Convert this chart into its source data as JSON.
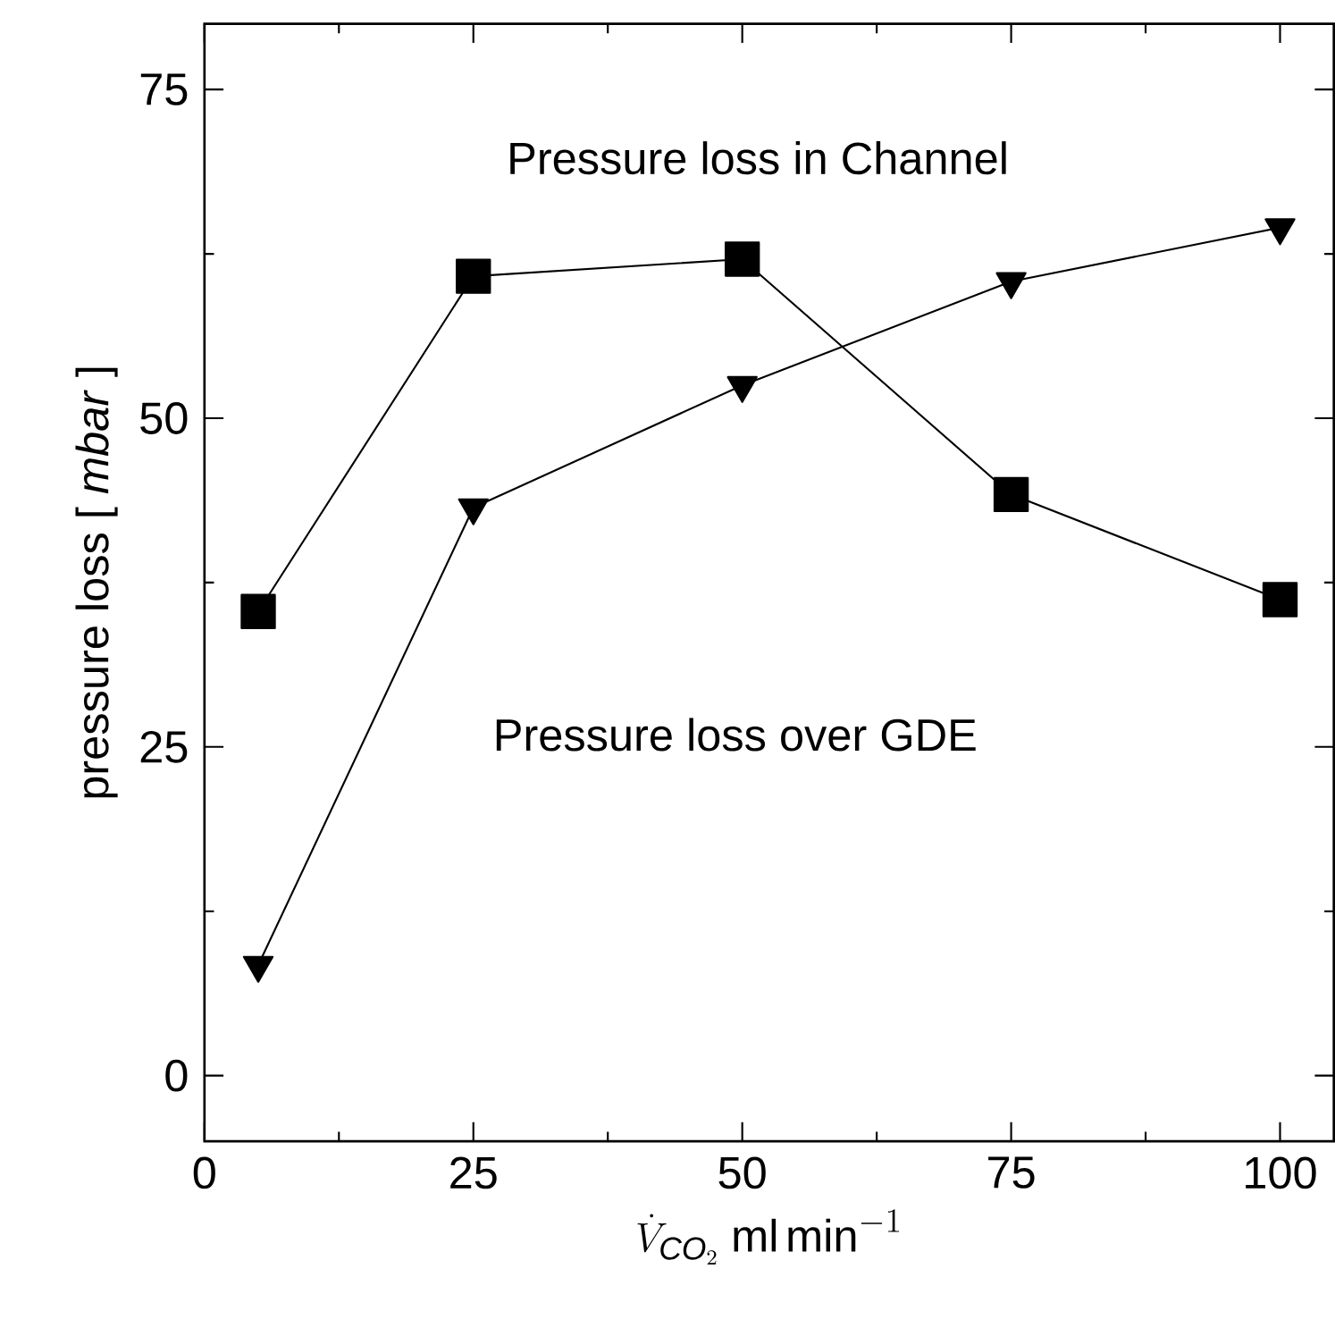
{
  "chart_data": {
    "type": "line",
    "xlabel": "\\dot{V}_{\\mathit{CO}_2}\\;\\mathrm{ml\\,min}^{-1}",
    "ylabel": "pressure loss [ *mbar* ]",
    "x": [
      5,
      25,
      50,
      75,
      100
    ],
    "series": [
      {
        "name": "Pressure loss in Channel",
        "color": "#000000",
        "marker": "square",
        "values": [
          35.3,
          60.8,
          62.1,
          44.2,
          36.2
        ]
      },
      {
        "name": "Pressure loss over GDE",
        "color": "#000000",
        "marker": "triangle",
        "values": [
          8.4,
          43.2,
          52.5,
          60.4,
          64.5
        ]
      }
    ],
    "xlim": [
      0,
      105
    ],
    "ylim": [
      -5,
      80
    ],
    "xticks": [
      0,
      25,
      50,
      75,
      100
    ],
    "yticks": [
      0,
      25,
      50,
      75
    ],
    "grid": false,
    "legend": false,
    "line_style": "solid"
  }
}
